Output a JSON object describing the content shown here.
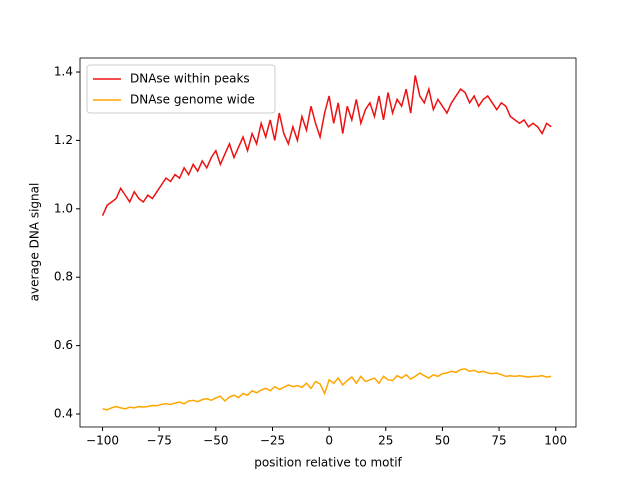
{
  "chart_data": {
    "type": "line",
    "xlabel": "position relative to motif",
    "ylabel": "average DNA signal",
    "x": [
      -100,
      -98,
      -96,
      -94,
      -92,
      -90,
      -88,
      -86,
      -84,
      -82,
      -80,
      -78,
      -76,
      -74,
      -72,
      -70,
      -68,
      -66,
      -64,
      -62,
      -60,
      -58,
      -56,
      -54,
      -52,
      -50,
      -48,
      -46,
      -44,
      -42,
      -40,
      -38,
      -36,
      -34,
      -32,
      -30,
      -28,
      -26,
      -24,
      -22,
      -20,
      -18,
      -16,
      -14,
      -12,
      -10,
      -8,
      -6,
      -4,
      -2,
      0,
      2,
      4,
      6,
      8,
      10,
      12,
      14,
      16,
      18,
      20,
      22,
      24,
      26,
      28,
      30,
      32,
      34,
      36,
      38,
      40,
      42,
      44,
      46,
      48,
      50,
      52,
      54,
      56,
      58,
      60,
      62,
      64,
      66,
      68,
      70,
      72,
      74,
      76,
      78,
      80,
      82,
      84,
      86,
      88,
      90,
      92,
      94,
      96,
      98
    ],
    "series": [
      {
        "name": "DNAse within peaks",
        "color": "#ee1111",
        "values": [
          0.98,
          1.01,
          1.02,
          1.03,
          1.06,
          1.04,
          1.02,
          1.05,
          1.03,
          1.02,
          1.04,
          1.03,
          1.05,
          1.07,
          1.09,
          1.08,
          1.1,
          1.09,
          1.12,
          1.1,
          1.13,
          1.11,
          1.14,
          1.12,
          1.15,
          1.17,
          1.13,
          1.16,
          1.19,
          1.15,
          1.18,
          1.21,
          1.17,
          1.22,
          1.19,
          1.25,
          1.21,
          1.26,
          1.2,
          1.28,
          1.22,
          1.19,
          1.24,
          1.2,
          1.27,
          1.23,
          1.3,
          1.25,
          1.21,
          1.28,
          1.33,
          1.25,
          1.31,
          1.22,
          1.3,
          1.26,
          1.32,
          1.25,
          1.29,
          1.31,
          1.27,
          1.33,
          1.26,
          1.34,
          1.28,
          1.32,
          1.3,
          1.35,
          1.28,
          1.39,
          1.33,
          1.31,
          1.35,
          1.29,
          1.32,
          1.3,
          1.28,
          1.31,
          1.33,
          1.35,
          1.34,
          1.31,
          1.33,
          1.3,
          1.32,
          1.33,
          1.31,
          1.29,
          1.31,
          1.3,
          1.27,
          1.26,
          1.25,
          1.26,
          1.24,
          1.25,
          1.24,
          1.22,
          1.25,
          1.24
        ]
      },
      {
        "name": "DNAse genome wide",
        "color": "#ffa500",
        "values": [
          0.415,
          0.412,
          0.418,
          0.422,
          0.418,
          0.415,
          0.42,
          0.418,
          0.422,
          0.42,
          0.422,
          0.425,
          0.424,
          0.428,
          0.43,
          0.428,
          0.432,
          0.435,
          0.43,
          0.438,
          0.44,
          0.436,
          0.442,
          0.445,
          0.44,
          0.447,
          0.452,
          0.438,
          0.45,
          0.455,
          0.448,
          0.46,
          0.455,
          0.468,
          0.462,
          0.47,
          0.475,
          0.468,
          0.48,
          0.472,
          0.478,
          0.485,
          0.48,
          0.483,
          0.478,
          0.49,
          0.475,
          0.495,
          0.488,
          0.46,
          0.5,
          0.49,
          0.505,
          0.485,
          0.498,
          0.508,
          0.49,
          0.51,
          0.495,
          0.5,
          0.505,
          0.49,
          0.51,
          0.5,
          0.498,
          0.512,
          0.505,
          0.515,
          0.502,
          0.51,
          0.52,
          0.512,
          0.505,
          0.515,
          0.51,
          0.518,
          0.52,
          0.525,
          0.522,
          0.53,
          0.532,
          0.525,
          0.528,
          0.522,
          0.525,
          0.52,
          0.518,
          0.52,
          0.515,
          0.51,
          0.512,
          0.51,
          0.512,
          0.51,
          0.508,
          0.51,
          0.51,
          0.512,
          0.508,
          0.51
        ]
      }
    ],
    "xlim": [
      -109.95,
      108.95
    ],
    "ylim": [
      0.362,
      1.441
    ],
    "xticks": [
      {
        "value": -100,
        "label": "−100"
      },
      {
        "value": -75,
        "label": "−75"
      },
      {
        "value": -50,
        "label": "−50"
      },
      {
        "value": -25,
        "label": "−25"
      },
      0,
      25,
      50,
      75,
      100
    ],
    "yticks": [
      0.4,
      0.6,
      0.8,
      {
        "value": 1,
        "label": "1.0"
      },
      1.2,
      1.4
    ],
    "legend": "upper left"
  }
}
